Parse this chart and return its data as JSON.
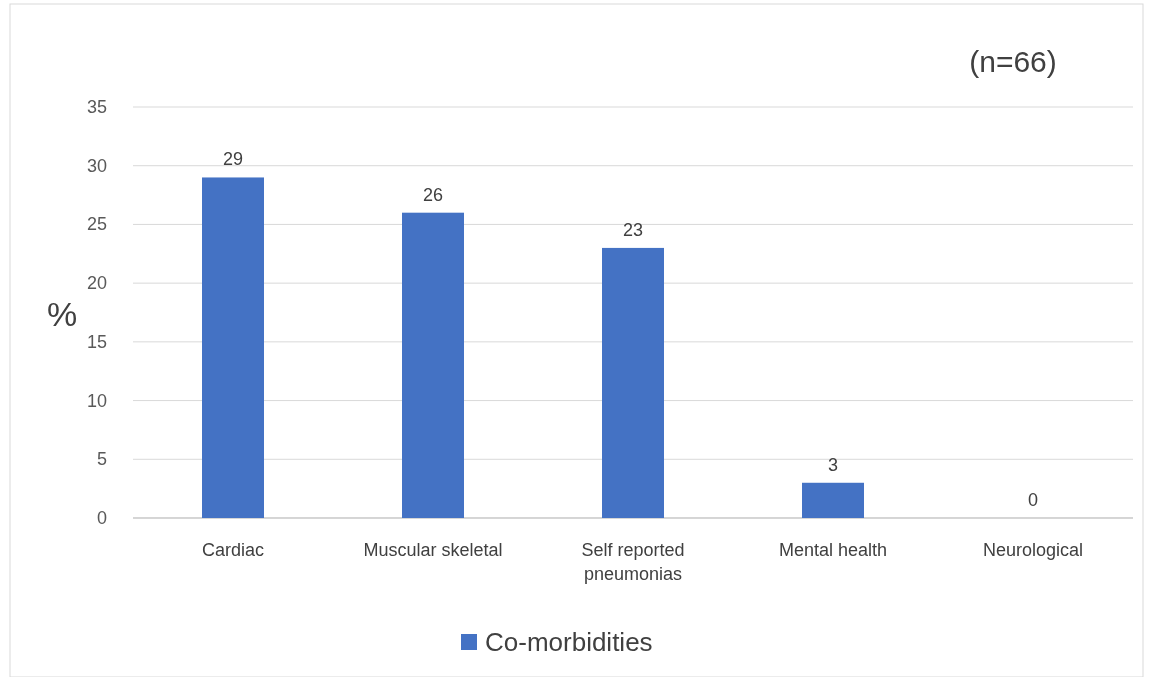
{
  "chart_data": {
    "type": "bar",
    "categories": [
      "Cardiac",
      "Muscular skeletal",
      "Self reported pneumonias",
      "Mental health",
      "Neurological"
    ],
    "series": [
      {
        "name": "Co-morbidities",
        "color": "#4472c4",
        "values": [
          29,
          26,
          23,
          3,
          0
        ]
      }
    ],
    "ylabel": "%",
    "annotations": [
      "(n=66)"
    ],
    "ylim": [
      0,
      35
    ],
    "yticks": [
      0,
      5,
      10,
      15,
      20,
      25,
      30,
      35
    ],
    "grid": "y",
    "legend": "bottom",
    "data_labels": true
  }
}
